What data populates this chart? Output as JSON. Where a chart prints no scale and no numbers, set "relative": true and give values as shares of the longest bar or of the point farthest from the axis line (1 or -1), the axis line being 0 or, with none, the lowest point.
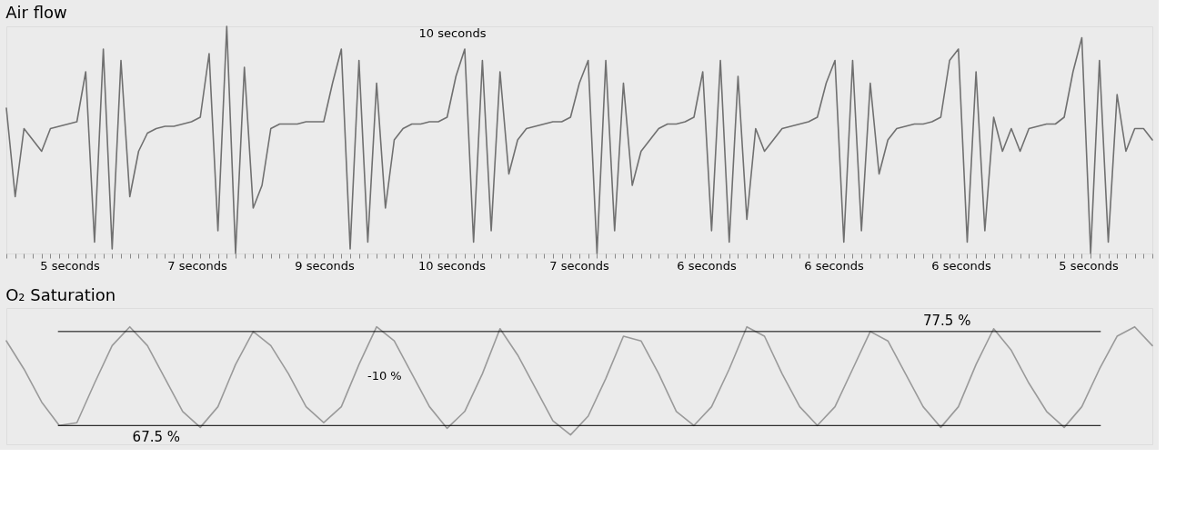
{
  "chart_data": [
    {
      "type": "line",
      "title": "Air flow",
      "relative": true,
      "categories": [
        null,
        null,
        null,
        null,
        null,
        null,
        null,
        null,
        null,
        null,
        null,
        null,
        null,
        null,
        null,
        null,
        null,
        null,
        null,
        null,
        null,
        null,
        null,
        null,
        null,
        null,
        null,
        null,
        null,
        null,
        null,
        null,
        null,
        null,
        null,
        null,
        null,
        null,
        null,
        null,
        null,
        null,
        null,
        null,
        null,
        null,
        null,
        null,
        null,
        null,
        null,
        null,
        null,
        null,
        null,
        null,
        null,
        null,
        null,
        null,
        null,
        null,
        null,
        null,
        null,
        null,
        null,
        null,
        null,
        null,
        null,
        null,
        null,
        null,
        null,
        null,
        null,
        null,
        null,
        null,
        null,
        null,
        null,
        null,
        null,
        null,
        null,
        null,
        null,
        null,
        null,
        null,
        null,
        null,
        null,
        null,
        null,
        null,
        null,
        null,
        null,
        null,
        null,
        null,
        null,
        null,
        null,
        null,
        null,
        null,
        null,
        null,
        null,
        null,
        null,
        null,
        null,
        null,
        null,
        null,
        null,
        null,
        null,
        null,
        null,
        null,
        null,
        null,
        null,
        null,
        null
      ],
      "series": [
        {
          "color": "#707070",
          "values": [
            0.64,
            0.25,
            0.55,
            0.5,
            0.45,
            0.55,
            0.56,
            0.57,
            0.58,
            0.8,
            0.05,
            0.9,
            0.02,
            0.85,
            0.25,
            0.45,
            0.53,
            0.55,
            0.56,
            0.56,
            0.57,
            0.58,
            0.6,
            0.88,
            0.1,
            1.0,
            0.0,
            0.82,
            0.2,
            0.3,
            0.55,
            0.57,
            0.57,
            0.57,
            0.58,
            0.58,
            0.58,
            0.75,
            0.9,
            0.02,
            0.85,
            0.05,
            0.75,
            0.2,
            0.5,
            0.55,
            0.57,
            0.57,
            0.58,
            0.58,
            0.6,
            0.78,
            0.9,
            0.05,
            0.85,
            0.1,
            0.8,
            0.35,
            0.5,
            0.55,
            0.56,
            0.57,
            0.58,
            0.58,
            0.6,
            0.75,
            0.85,
            0.0,
            0.85,
            0.1,
            0.75,
            0.3,
            0.45,
            0.5,
            0.55,
            0.57,
            0.57,
            0.58,
            0.6,
            0.8,
            0.1,
            0.85,
            0.05,
            0.78,
            0.15,
            0.55,
            0.45,
            0.5,
            0.55,
            0.56,
            0.57,
            0.58,
            0.6,
            0.75,
            0.85,
            0.05,
            0.85,
            0.1,
            0.75,
            0.35,
            0.5,
            0.55,
            0.56,
            0.57,
            0.57,
            0.58,
            0.6,
            0.85,
            0.9,
            0.05,
            0.8,
            0.1,
            0.6,
            0.45,
            0.55,
            0.45,
            0.55,
            0.56,
            0.57,
            0.57,
            0.6,
            0.8,
            0.95,
            0.0,
            0.85,
            0.05,
            0.7,
            0.45,
            0.55,
            0.55,
            0.5
          ]
        }
      ],
      "annotations": [
        "10 seconds",
        "5 seconds",
        "7 seconds",
        "9 seconds",
        "10 seconds",
        "7 seconds",
        "6 seconds",
        "6 seconds",
        "6 seconds",
        "5 seconds"
      ]
    },
    {
      "type": "line",
      "title": "O₂ Saturation",
      "tick_labels": false,
      "ylim": [
        65.5,
        80
      ],
      "categories": [
        null,
        null,
        null,
        null,
        null,
        null,
        null,
        null,
        null,
        null,
        null,
        null,
        null,
        null,
        null,
        null,
        null,
        null,
        null,
        null,
        null,
        null,
        null,
        null,
        null,
        null,
        null,
        null,
        null,
        null,
        null,
        null,
        null,
        null,
        null,
        null,
        null,
        null,
        null,
        null,
        null,
        null,
        null,
        null,
        null,
        null,
        null,
        null,
        null,
        null,
        null,
        null,
        null,
        null,
        null,
        null,
        null,
        null,
        null,
        null,
        null,
        null,
        null,
        null,
        null,
        null
      ],
      "series": [
        {
          "color": "#9a9a9a",
          "values": [
            76.5,
            73.5,
            70,
            67.5,
            67.8,
            72,
            76,
            78,
            76,
            72.5,
            69,
            67.3,
            69.5,
            74,
            77.5,
            76,
            73,
            69.5,
            67.8,
            69.5,
            74,
            78,
            76.5,
            73,
            69.5,
            67.2,
            69,
            73,
            77.8,
            75,
            71.5,
            68,
            66.5,
            68.5,
            72.5,
            77,
            76.5,
            73,
            69,
            67.5,
            69.5,
            73.5,
            78,
            77,
            73,
            69.5,
            67.5,
            69.5,
            73.5,
            77.5,
            76.5,
            73,
            69.5,
            67.3,
            69.5,
            74,
            77.8,
            75.5,
            72,
            69,
            67.3,
            69.5,
            73.5,
            77,
            78,
            76
          ]
        }
      ],
      "ref_lines": [
        {
          "axis": "y",
          "value": 77.5,
          "label": "77.5 %",
          "color": "#000000"
        },
        {
          "axis": "y",
          "value": 67.5,
          "label": "67.5 %",
          "color": "#000000"
        }
      ],
      "annotations": [
        "-10 %"
      ]
    }
  ]
}
